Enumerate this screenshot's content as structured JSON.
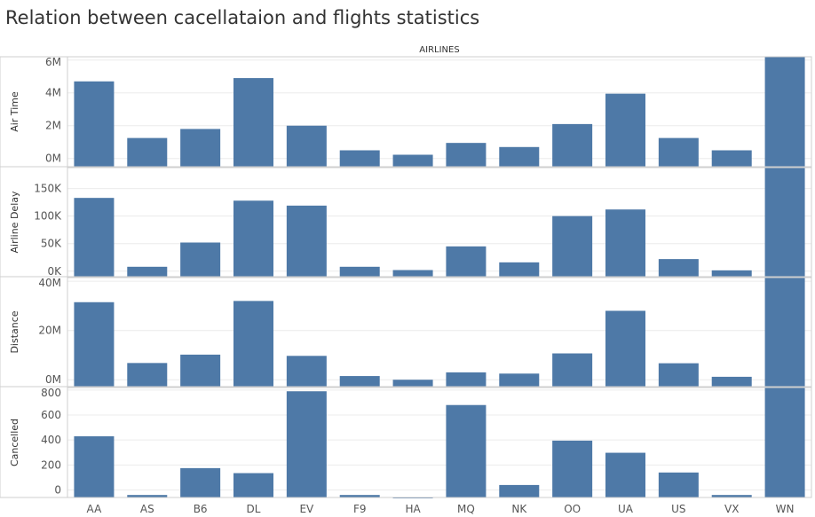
{
  "title": "Relation between cacellataion and flights statistics",
  "chart_data": {
    "type": "bar",
    "title": "Relation between cacellataion and flights statistics",
    "column_header": "AIRLINES",
    "categories": [
      "AA",
      "AS",
      "B6",
      "DL",
      "EV",
      "F9",
      "HA",
      "MQ",
      "NK",
      "OO",
      "UA",
      "US",
      "VX",
      "WN"
    ],
    "bar_color": "#4e79a7",
    "grid": true,
    "panels": [
      {
        "name": "Air Time",
        "ylabel": "Air Time",
        "ylim": [
          -500000,
          6200000
        ],
        "ticks": [
          0,
          2000000,
          4000000,
          6000000
        ],
        "tick_labels": [
          "0M",
          "2M",
          "4M",
          "6M"
        ],
        "values": [
          4700000,
          1250000,
          1800000,
          4900000,
          2000000,
          500000,
          230000,
          950000,
          700000,
          2100000,
          3950000,
          1250000,
          500000,
          6200000
        ]
      },
      {
        "name": "Airline Delay",
        "ylabel": "Airline Delay",
        "ylim": [
          -10000,
          188000
        ],
        "ticks": [
          0,
          50000,
          100000,
          150000
        ],
        "tick_labels": [
          "0K",
          "50K",
          "100K",
          "150K"
        ],
        "values": [
          133000,
          8000,
          52000,
          128000,
          119000,
          8000,
          2000,
          45000,
          16000,
          100000,
          112000,
          22000,
          1500,
          188000
        ]
      },
      {
        "name": "Distance",
        "ylabel": "Distance",
        "ylim": [
          -2800000,
          41500000
        ],
        "ticks": [
          0,
          20000000,
          40000000
        ],
        "tick_labels": [
          "0M",
          "20M",
          "40M"
        ],
        "values": [
          31500000,
          6800000,
          10200000,
          32000000,
          9700000,
          1500000,
          0,
          3000000,
          2500000,
          10700000,
          28000000,
          6700000,
          1200000,
          41500000
        ]
      },
      {
        "name": "Cancelled",
        "ylabel": "Cancelled",
        "ylim": [
          -60,
          820
        ],
        "ticks": [
          0,
          200,
          400,
          600,
          800
        ],
        "tick_labels": [
          "0",
          "200",
          "400",
          "600",
          "800"
        ],
        "values": [
          430,
          -40,
          175,
          135,
          790,
          -40,
          -60,
          680,
          40,
          395,
          298,
          140,
          -40,
          820
        ]
      }
    ]
  }
}
